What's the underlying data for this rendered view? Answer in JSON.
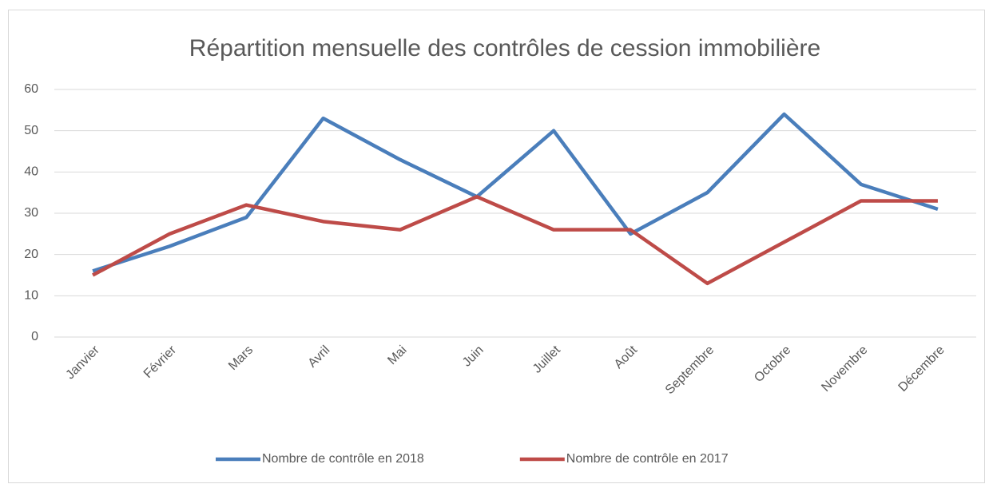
{
  "chart_data": {
    "type": "line",
    "title": "Répartition mensuelle des contrôles de cession immobilière",
    "categories": [
      "Janvier",
      "Février",
      "Mars",
      "Avril",
      "Mai",
      "Juin",
      "Juillet",
      "Août",
      "Septembre",
      "Octobre",
      "Novembre",
      "Décembre"
    ],
    "series": [
      {
        "name": "Nombre de contrôle en 2018",
        "color": "#4a7ebb",
        "values": [
          16,
          22,
          29,
          53,
          43,
          34,
          50,
          25,
          35,
          54,
          37,
          31
        ]
      },
      {
        "name": "Nombre de contrôle en 2017",
        "color": "#be4b48",
        "values": [
          15,
          25,
          32,
          28,
          26,
          34,
          26,
          26,
          13,
          23,
          33,
          33
        ]
      }
    ],
    "ylim": [
      0,
      60
    ],
    "yticks": [
      0,
      10,
      20,
      30,
      40,
      50,
      60
    ],
    "grid": true,
    "legend": "bottom"
  }
}
